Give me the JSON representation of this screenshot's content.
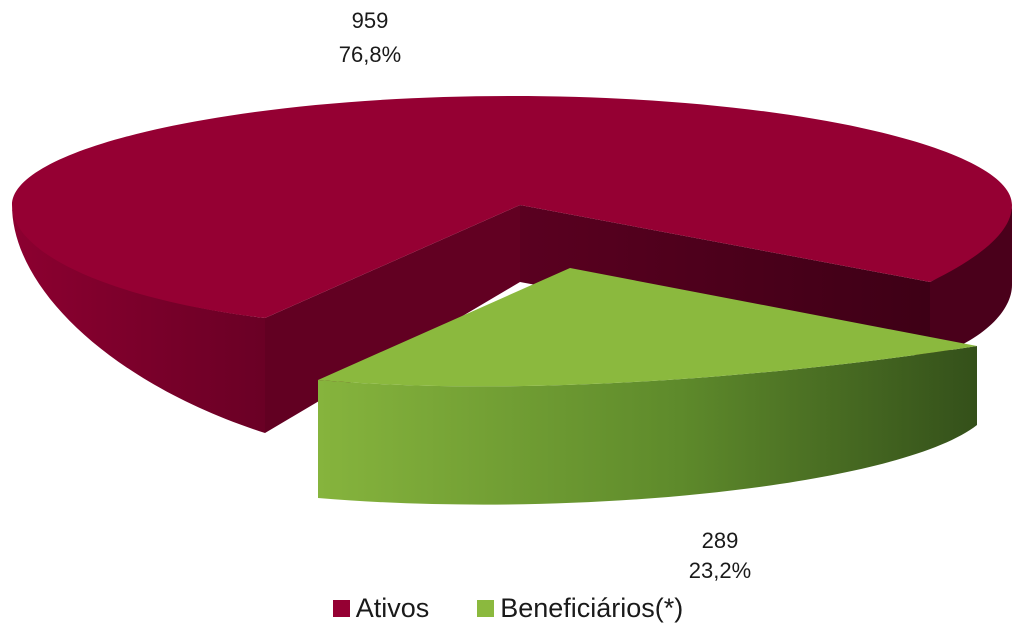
{
  "chart_data": {
    "type": "pie",
    "style": "3d exploded",
    "slices": [
      {
        "label": "Ativos",
        "value": 959,
        "percent": "76,8%",
        "value_label": "959",
        "color": "#950033",
        "side_color": "#6a0025",
        "inner_color": "#47001a"
      },
      {
        "label": "Beneficiários(*)",
        "value": 289,
        "percent": "23,2%",
        "value_label": "289",
        "color": "#8bb93e",
        "side_color": "#5f8a2a",
        "inner_color": "#3b5a1a"
      }
    ],
    "legend": {
      "position": "bottom"
    },
    "title": ""
  }
}
